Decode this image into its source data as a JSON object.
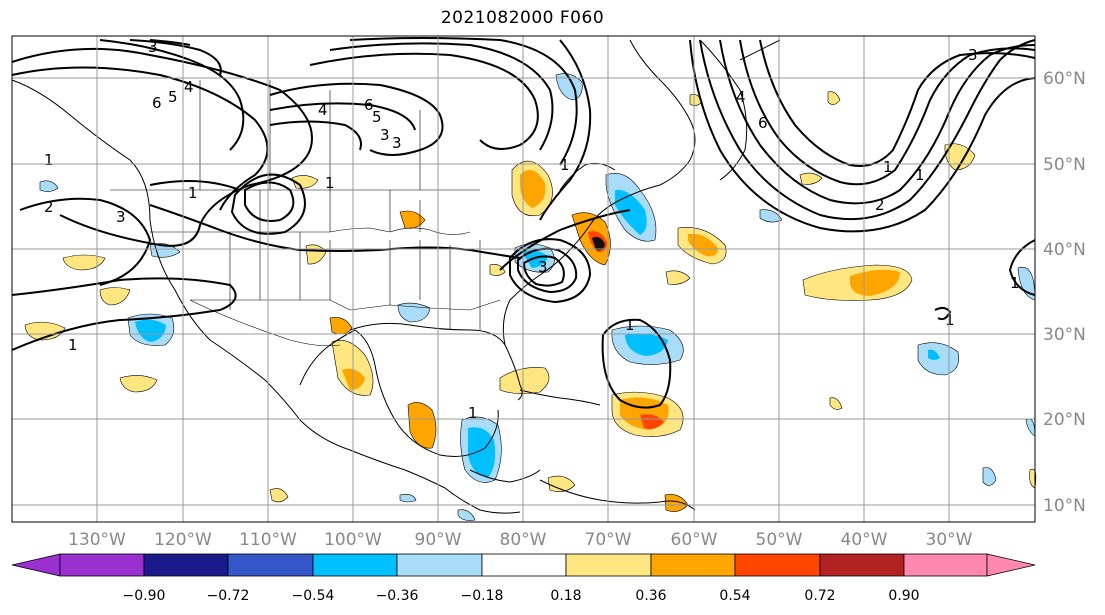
{
  "title": "2021082000 F060",
  "map": {
    "lon_labels": [
      "130°W",
      "120°W",
      "110°W",
      "100°W",
      "90°W",
      "80°W",
      "70°W",
      "60°W",
      "50°W",
      "40°W",
      "30°W"
    ],
    "lat_labels": [
      "60°N",
      "50°N",
      "40°N",
      "30°N",
      "20°N",
      "10°N"
    ],
    "contour_labels": [
      "3",
      "6",
      "5",
      "4",
      "3",
      "4",
      "6",
      "5",
      "3",
      "1",
      "1",
      "2",
      "3",
      "1",
      "1",
      "1",
      "3",
      "1",
      "6",
      "4",
      "3",
      "1",
      "1",
      "2",
      "1",
      "1",
      "1"
    ]
  },
  "colorbar": {
    "ticks": [
      "−0.90",
      "−0.72",
      "−0.54",
      "−0.36",
      "−0.18",
      "0.18",
      "0.36",
      "0.54",
      "0.72",
      "0.90"
    ],
    "colors": [
      "#9b30d0",
      "#1a1a8c",
      "#3556c8",
      "#00bfff",
      "#a8dcf8",
      "#ffffff",
      "#ffe680",
      "#ffa500",
      "#ff4500",
      "#b22222",
      "#ff88b0"
    ]
  }
}
